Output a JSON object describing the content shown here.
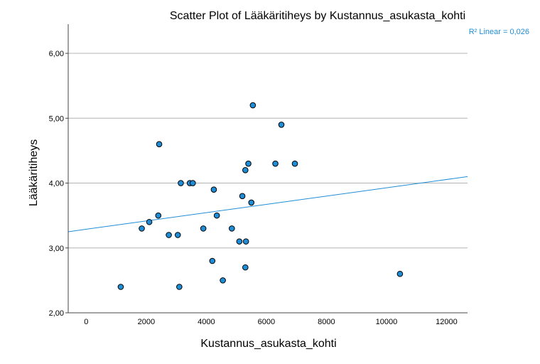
{
  "chart_data": {
    "type": "scatter",
    "title": "Scatter Plot of Lääkäritiheys by Kustannus_asukasta_kohti",
    "xlabel": "Kustannus_asukasta_kohti",
    "ylabel": "Lääkäritiheys",
    "xlim": [
      -600,
      12700
    ],
    "ylim": [
      2.0,
      6.45
    ],
    "x_ticks": [
      0,
      2000,
      4000,
      6000,
      8000,
      10000,
      12000
    ],
    "x_tick_labels": [
      "0",
      "2000",
      "4000",
      "6000",
      "8000",
      "10000",
      "12000"
    ],
    "y_ticks": [
      2.0,
      3.0,
      4.0,
      5.0,
      6.0
    ],
    "y_tick_labels": [
      "2,00",
      "3,00",
      "4,00",
      "5,00",
      "6,00"
    ],
    "grid": "horizontal",
    "points": [
      {
        "x": 1150,
        "y": 2.4
      },
      {
        "x": 1850,
        "y": 3.3
      },
      {
        "x": 2100,
        "y": 3.4
      },
      {
        "x": 2400,
        "y": 3.5
      },
      {
        "x": 2430,
        "y": 4.6
      },
      {
        "x": 2750,
        "y": 3.2
      },
      {
        "x": 3050,
        "y": 3.2
      },
      {
        "x": 3100,
        "y": 2.4
      },
      {
        "x": 3150,
        "y": 4.0
      },
      {
        "x": 3450,
        "y": 4.0
      },
      {
        "x": 3550,
        "y": 4.0
      },
      {
        "x": 3900,
        "y": 3.3
      },
      {
        "x": 4200,
        "y": 2.8
      },
      {
        "x": 4250,
        "y": 3.9
      },
      {
        "x": 4350,
        "y": 3.5
      },
      {
        "x": 4550,
        "y": 2.5
      },
      {
        "x": 4850,
        "y": 3.3
      },
      {
        "x": 5100,
        "y": 3.1
      },
      {
        "x": 5200,
        "y": 3.8
      },
      {
        "x": 5300,
        "y": 4.2
      },
      {
        "x": 5300,
        "y": 2.7
      },
      {
        "x": 5320,
        "y": 3.1
      },
      {
        "x": 5400,
        "y": 4.3
      },
      {
        "x": 5500,
        "y": 3.7
      },
      {
        "x": 5550,
        "y": 5.2
      },
      {
        "x": 6300,
        "y": 4.3
      },
      {
        "x": 6500,
        "y": 4.9
      },
      {
        "x": 6950,
        "y": 4.3
      },
      {
        "x": 10450,
        "y": 2.6
      }
    ],
    "fit_line": {
      "label": "R² Linear = 0,026",
      "x": [
        -600,
        12700
      ],
      "y": [
        3.25,
        4.1
      ]
    },
    "colors": {
      "point_fill": "#1f8dd6",
      "point_stroke": "#000000",
      "fit_line": "#1f8dd6",
      "grid": "#b4b4b4",
      "axis": "#444444"
    }
  }
}
